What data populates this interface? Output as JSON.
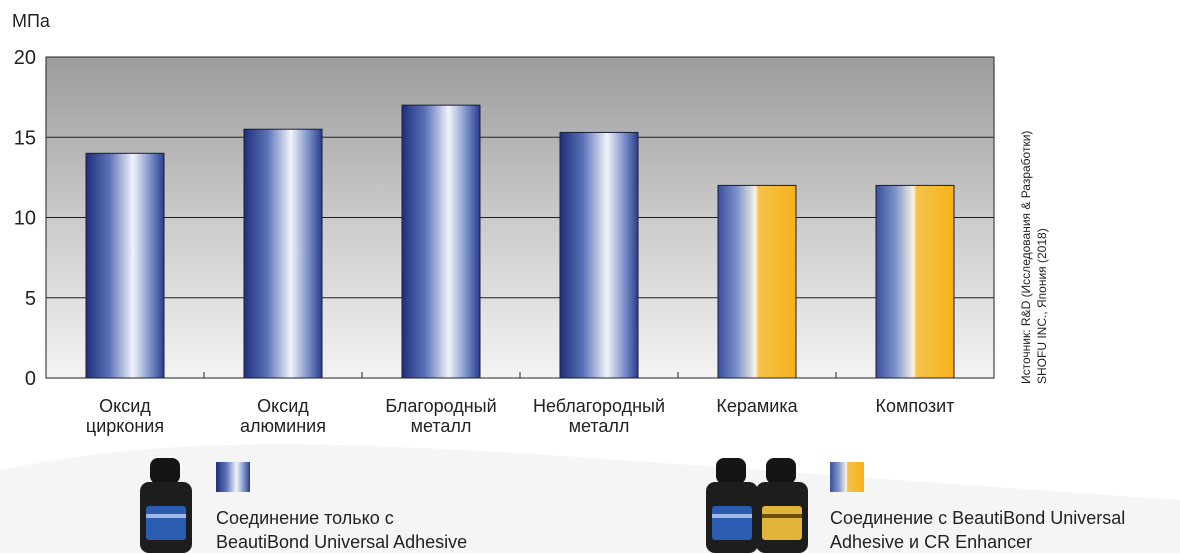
{
  "chart_data": {
    "type": "bar",
    "unit_label": "МПа",
    "categories": [
      [
        "Оксид",
        "циркония"
      ],
      [
        "Оксид",
        "алюминия"
      ],
      [
        "Благородный",
        "металл"
      ],
      [
        "Неблагородный",
        "металл"
      ],
      [
        "Керамика"
      ],
      [
        "Композит"
      ]
    ],
    "values": [
      14,
      15.5,
      17,
      15.3,
      12,
      12
    ],
    "bar_styles": [
      "blue",
      "blue",
      "blue",
      "blue",
      "blue-orange",
      "blue-orange"
    ],
    "ylim": [
      0,
      20
    ],
    "yticks": [
      "0",
      "5",
      "10",
      "15",
      "20"
    ],
    "grid": true,
    "source_note": [
      "Источник: R&D (Исследования & Разработки)",
      "SHOFU INC., Япония (2018)"
    ]
  },
  "legend": {
    "item1": {
      "style": "blue",
      "line1": "Соединение только с",
      "line2": "BeautiBond Universal Adhesive"
    },
    "item2": {
      "style": "blue-orange",
      "line1": "Соединение с BeautiBond Universal",
      "line2": "Adhesive и CR Enhancer"
    }
  },
  "colors": {
    "bar_blue_dark": "#1f2f7a",
    "bar_blue_mid": "#6f86c4",
    "bar_highlight": "#f2f4fb",
    "bar_orange": "#f6b21a",
    "bottle_cap": "#1a1a1a",
    "bottle_label_blue": "#2a5db0",
    "bottle_label_gold": "#e0b53a"
  }
}
